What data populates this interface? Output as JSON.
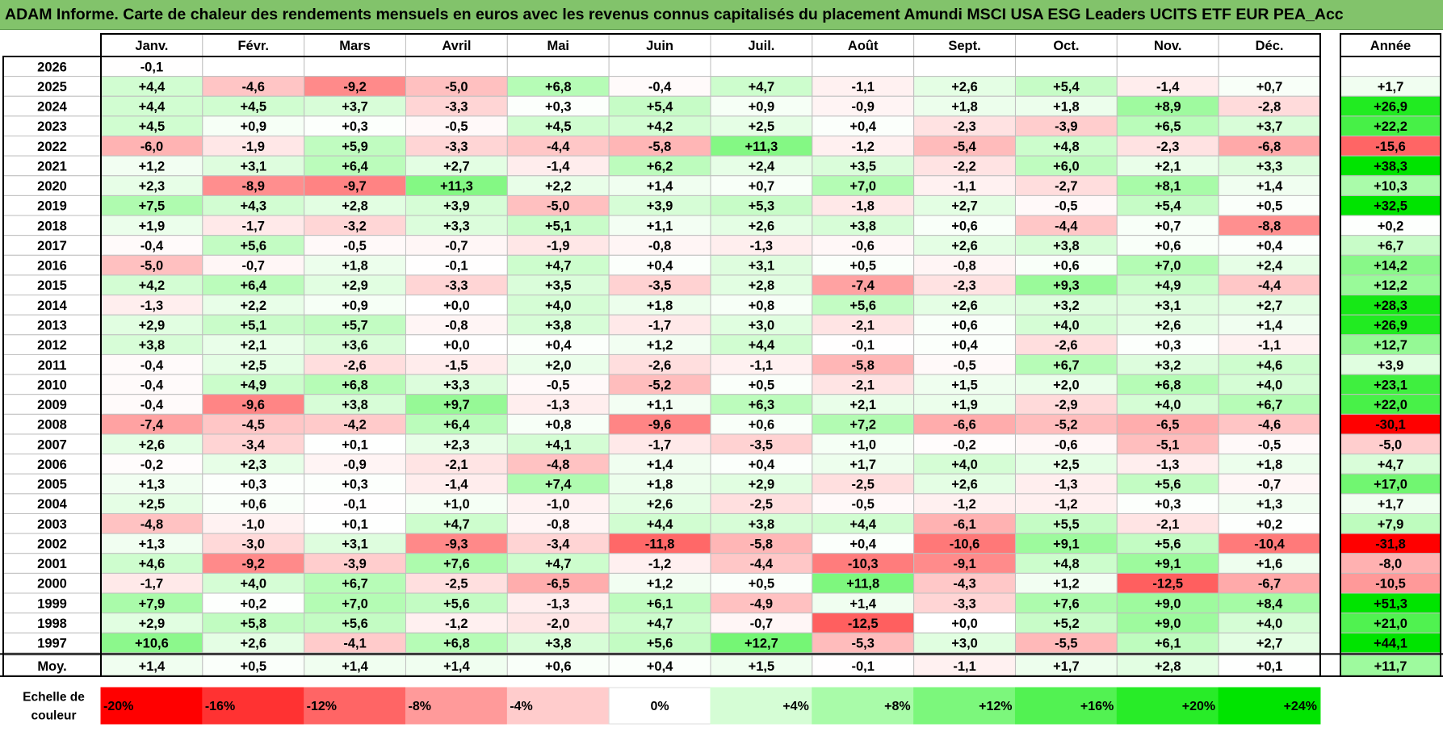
{
  "title": "ADAM Informe. Carte de chaleur des rendements mensuels en euros avec les revenus connus capitalisés du placement Amundi MSCI USA ESG Leaders UCITS ETF EUR PEA_Acc",
  "chart_data": {
    "type": "heatmap",
    "months": [
      "Janv.",
      "Févr.",
      "Mars",
      "Avril",
      "Mai",
      "Juin",
      "Juil.",
      "Août",
      "Sept.",
      "Oct.",
      "Nov.",
      "Déc."
    ],
    "year_header": "Année",
    "rows": [
      {
        "year": "2026",
        "values": [
          -0.1,
          null,
          null,
          null,
          null,
          null,
          null,
          null,
          null,
          null,
          null,
          null
        ],
        "annual": null
      },
      {
        "year": "2025",
        "values": [
          4.4,
          -4.6,
          -9.2,
          -5.0,
          6.8,
          -0.4,
          4.7,
          -1.1,
          2.6,
          5.4,
          -1.4,
          0.7
        ],
        "annual": 1.7
      },
      {
        "year": "2024",
        "values": [
          4.4,
          4.5,
          3.7,
          -3.3,
          0.3,
          5.4,
          0.9,
          -0.9,
          1.8,
          1.8,
          8.9,
          -2.8
        ],
        "annual": 26.9
      },
      {
        "year": "2023",
        "values": [
          4.5,
          0.9,
          0.3,
          -0.5,
          4.5,
          4.2,
          2.5,
          0.4,
          -2.3,
          -3.9,
          6.5,
          3.7
        ],
        "annual": 22.2
      },
      {
        "year": "2022",
        "values": [
          -6.0,
          -1.9,
          5.9,
          -3.3,
          -4.4,
          -5.8,
          11.3,
          -1.2,
          -5.4,
          4.8,
          -2.3,
          -6.8
        ],
        "annual": -15.6
      },
      {
        "year": "2021",
        "values": [
          1.2,
          3.1,
          6.4,
          2.7,
          -1.4,
          6.2,
          2.4,
          3.5,
          -2.2,
          6.0,
          2.1,
          3.3
        ],
        "annual": 38.3
      },
      {
        "year": "2020",
        "values": [
          2.3,
          -8.9,
          -9.7,
          11.3,
          2.2,
          1.4,
          0.7,
          7.0,
          -1.1,
          -2.7,
          8.1,
          1.4
        ],
        "annual": 10.3
      },
      {
        "year": "2019",
        "values": [
          7.5,
          4.3,
          2.8,
          3.9,
          -5.0,
          3.9,
          5.3,
          -1.8,
          2.7,
          -0.5,
          5.4,
          0.5
        ],
        "annual": 32.5
      },
      {
        "year": "2018",
        "values": [
          1.9,
          -1.7,
          -3.2,
          3.3,
          5.1,
          1.1,
          2.6,
          3.8,
          0.6,
          -4.4,
          0.7,
          -8.8
        ],
        "annual": 0.2
      },
      {
        "year": "2017",
        "values": [
          -0.4,
          5.6,
          -0.5,
          -0.7,
          -1.9,
          -0.8,
          -1.3,
          -0.6,
          2.6,
          3.8,
          0.6,
          0.4
        ],
        "annual": 6.7
      },
      {
        "year": "2016",
        "values": [
          -5.0,
          -0.7,
          1.8,
          -0.1,
          4.7,
          0.4,
          3.1,
          0.5,
          -0.8,
          0.6,
          7.0,
          2.4
        ],
        "annual": 14.2
      },
      {
        "year": "2015",
        "values": [
          4.2,
          6.4,
          2.9,
          -3.3,
          3.5,
          -3.5,
          2.8,
          -7.4,
          -2.3,
          9.3,
          4.9,
          -4.4
        ],
        "annual": 12.2
      },
      {
        "year": "2014",
        "values": [
          -1.3,
          2.2,
          0.9,
          -0.0,
          4.0,
          1.8,
          0.8,
          5.6,
          2.6,
          3.2,
          3.1,
          2.7
        ],
        "annual": 28.3
      },
      {
        "year": "2013",
        "values": [
          2.9,
          5.1,
          5.7,
          -0.8,
          3.8,
          -1.7,
          3.0,
          -2.1,
          0.6,
          4.0,
          2.6,
          1.4
        ],
        "annual": 26.9
      },
      {
        "year": "2012",
        "values": [
          3.8,
          2.1,
          3.6,
          -0.0,
          0.4,
          1.2,
          4.4,
          -0.1,
          0.4,
          -2.6,
          0.3,
          -1.1
        ],
        "annual": 12.7
      },
      {
        "year": "2011",
        "values": [
          -0.4,
          2.5,
          -2.6,
          -1.5,
          2.0,
          -2.6,
          -1.1,
          -5.8,
          -0.5,
          6.7,
          3.2,
          4.6
        ],
        "annual": 3.9
      },
      {
        "year": "2010",
        "values": [
          -0.4,
          4.9,
          6.8,
          3.3,
          -0.5,
          -5.2,
          0.5,
          -2.1,
          1.5,
          2.0,
          6.8,
          4.0
        ],
        "annual": 23.1
      },
      {
        "year": "2009",
        "values": [
          -0.4,
          -9.6,
          3.8,
          9.7,
          -1.3,
          1.1,
          6.3,
          2.1,
          1.9,
          -2.9,
          4.0,
          6.7
        ],
        "annual": 22.0
      },
      {
        "year": "2008",
        "values": [
          -7.4,
          -4.5,
          -4.2,
          6.4,
          0.8,
          -9.6,
          0.6,
          7.2,
          -6.6,
          -5.2,
          -6.5,
          -4.6
        ],
        "annual": -30.1
      },
      {
        "year": "2007",
        "values": [
          2.6,
          -3.4,
          0.1,
          2.3,
          4.1,
          -1.7,
          -3.5,
          1.0,
          -0.2,
          -0.6,
          -5.1,
          -0.5
        ],
        "annual": -5.0
      },
      {
        "year": "2006",
        "values": [
          -0.2,
          2.3,
          -0.9,
          -2.1,
          -4.8,
          1.4,
          0.4,
          1.7,
          4.0,
          2.5,
          -1.3,
          1.8
        ],
        "annual": 4.7
      },
      {
        "year": "2005",
        "values": [
          1.3,
          0.3,
          0.3,
          -1.4,
          7.4,
          1.8,
          2.9,
          -2.5,
          2.6,
          -1.3,
          5.6,
          -0.7
        ],
        "annual": 17.0
      },
      {
        "year": "2004",
        "values": [
          2.5,
          0.6,
          -0.1,
          1.0,
          -1.0,
          2.6,
          -2.5,
          -0.5,
          -1.2,
          -1.2,
          0.3,
          1.3
        ],
        "annual": 1.7
      },
      {
        "year": "2003",
        "values": [
          -4.8,
          -1.0,
          0.1,
          4.7,
          -0.8,
          4.4,
          3.8,
          4.4,
          -6.1,
          5.5,
          -2.1,
          0.2
        ],
        "annual": 7.9
      },
      {
        "year": "2002",
        "values": [
          1.3,
          -3.0,
          3.1,
          -9.3,
          -3.4,
          -11.8,
          -5.8,
          0.4,
          -10.6,
          9.1,
          5.6,
          -10.4
        ],
        "annual": -31.8
      },
      {
        "year": "2001",
        "values": [
          4.6,
          -9.2,
          -3.9,
          7.6,
          4.7,
          -1.2,
          -4.4,
          -10.3,
          -9.1,
          4.8,
          9.1,
          1.6
        ],
        "annual": -8.0
      },
      {
        "year": "2000",
        "values": [
          -1.7,
          4.0,
          6.7,
          -2.5,
          -6.5,
          1.2,
          0.5,
          11.8,
          -4.3,
          1.2,
          -12.5,
          -6.7
        ],
        "annual": -10.5
      },
      {
        "year": "1999",
        "values": [
          7.9,
          0.2,
          7.0,
          5.6,
          -1.3,
          6.1,
          -4.9,
          1.4,
          -3.3,
          7.6,
          9.0,
          8.4
        ],
        "annual": 51.3
      },
      {
        "year": "1998",
        "values": [
          2.9,
          5.8,
          5.6,
          -1.2,
          -2.0,
          4.7,
          -0.7,
          -12.5,
          0.0,
          5.2,
          9.0,
          4.0
        ],
        "annual": 21.0
      },
      {
        "year": "1997",
        "values": [
          10.6,
          2.6,
          -4.1,
          6.8,
          3.8,
          5.6,
          12.7,
          -5.3,
          3.0,
          -5.5,
          6.1,
          2.7
        ],
        "annual": 44.1
      }
    ],
    "average": {
      "label": "Moy.",
      "values": [
        1.4,
        0.5,
        1.4,
        1.4,
        0.6,
        0.4,
        1.5,
        -0.1,
        -1.1,
        1.7,
        2.8,
        0.1
      ],
      "annual": 11.7
    },
    "legend": {
      "label_line1": "Echelle de",
      "label_line2": "couleur",
      "stops": [
        {
          "label": "-20%",
          "value": -20,
          "color": "#ff0000"
        },
        {
          "label": "-16%",
          "value": -16,
          "color": "#ff3232"
        },
        {
          "label": "-12%",
          "value": -12,
          "color": "#ff6565"
        },
        {
          "label": "-8%",
          "value": -8,
          "color": "#ff9a9a"
        },
        {
          "label": "-4%",
          "value": -4,
          "color": "#ffcccc"
        },
        {
          "label": "0%",
          "value": 0,
          "color": "#ffffff"
        },
        {
          "label": "+4%",
          "value": 4,
          "color": "#d5fdd5"
        },
        {
          "label": "+8%",
          "value": 8,
          "color": "#a9fba9"
        },
        {
          "label": "+12%",
          "value": 12,
          "color": "#7cf77c"
        },
        {
          "label": "+16%",
          "value": 16,
          "color": "#52f252"
        },
        {
          "label": "+20%",
          "value": 20,
          "color": "#28ec28"
        },
        {
          "label": "+24%",
          "value": 24,
          "color": "#00e400"
        }
      ]
    }
  }
}
